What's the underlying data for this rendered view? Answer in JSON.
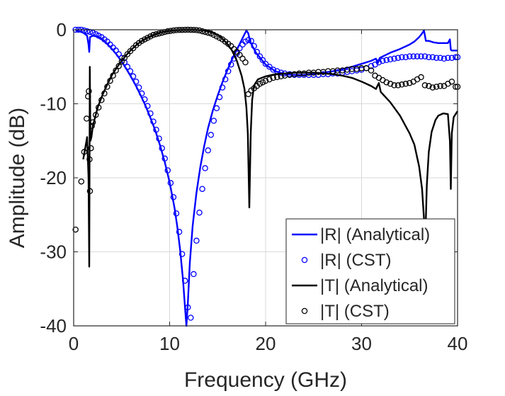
{
  "chart_data": {
    "type": "line",
    "xlabel": "Frequency (GHz)",
    "ylabel": "Amplitude (dB)",
    "xlim": [
      0,
      40
    ],
    "ylim": [
      -40,
      0
    ],
    "xticks": [
      0,
      10,
      20,
      30,
      40
    ],
    "yticks": [
      0,
      -10,
      -20,
      -30,
      -40
    ],
    "grid": true,
    "legend_position": "bottom-right",
    "series": [
      {
        "name": "|R| (Analytical)",
        "style": "line",
        "color": "#0000ff",
        "x": [
          0.2,
          0.6,
          1.0,
          1.4,
          1.55,
          1.62,
          1.7,
          2.0,
          2.5,
          3,
          3.5,
          4,
          4.5,
          5,
          5.5,
          6,
          6.5,
          7,
          7.5,
          8,
          8.5,
          9,
          9.5,
          10,
          10.5,
          10.8,
          11.1,
          11.4,
          11.6,
          11.75,
          11.9,
          12.1,
          12.4,
          12.8,
          13.2,
          13.6,
          14,
          14.5,
          15,
          15.5,
          16,
          16.5,
          17,
          17.5,
          18,
          18.2,
          18.35,
          18.5,
          19,
          20,
          21,
          22,
          23,
          24,
          25,
          26,
          27,
          28,
          29,
          30,
          31,
          31.5,
          31.7,
          31.9,
          33,
          34,
          35,
          35.5,
          36,
          36.3,
          36.5,
          36.7,
          37,
          37.5,
          38,
          38.5,
          39,
          39.2,
          39.3,
          39.4,
          39.6,
          40
        ],
        "y": [
          -0.1,
          -0.2,
          -0.4,
          -0.8,
          -2.0,
          -3.0,
          -1.0,
          -0.8,
          -0.9,
          -1.3,
          -1.9,
          -2.6,
          -3.4,
          -4.3,
          -5.3,
          -6.4,
          -7.6,
          -8.9,
          -10.3,
          -11.9,
          -13.6,
          -15.6,
          -17.9,
          -20.6,
          -24.0,
          -26.6,
          -29.8,
          -33.9,
          -37.5,
          -40.0,
          -37.0,
          -31.5,
          -26.5,
          -22.0,
          -18.5,
          -15.7,
          -13.3,
          -10.9,
          -8.9,
          -7.1,
          -5.5,
          -4.0,
          -2.7,
          -1.4,
          -0.1,
          -0.5,
          -1.4,
          -1.9,
          -3.1,
          -4.7,
          -5.6,
          -6.0,
          -6.1,
          -6.1,
          -6.0,
          -5.8,
          -5.6,
          -5.3,
          -5.0,
          -4.6,
          -4.2,
          -3.9,
          -4.5,
          -3.8,
          -3.1,
          -2.6,
          -2.0,
          -1.6,
          -1.0,
          -0.5,
          -0.1,
          -1.5,
          -1.5,
          -1.7,
          -1.8,
          -1.8,
          -1.8,
          -1.3,
          -2.7,
          -2.8,
          -2.8,
          -2.8
        ]
      },
      {
        "name": "|R| (CST)",
        "style": "markers",
        "color": "#0000ff",
        "x": [
          0.2,
          0.5,
          0.8,
          1.1,
          1.4,
          1.7,
          2.0,
          2.3,
          2.6,
          2.9,
          3.2,
          3.5,
          3.8,
          4.1,
          4.4,
          4.7,
          5.0,
          5.3,
          5.6,
          5.9,
          6.2,
          6.5,
          6.8,
          7.1,
          7.4,
          7.7,
          8.0,
          8.3,
          8.6,
          8.9,
          9.2,
          9.5,
          9.8,
          10.1,
          10.4,
          10.7,
          11.0,
          11.3,
          11.6,
          11.9,
          12.2,
          12.5,
          12.8,
          13.1,
          13.4,
          13.7,
          14.0,
          14.3,
          14.6,
          14.9,
          15.2,
          15.5,
          15.8,
          16.1,
          16.4,
          16.7,
          17.0,
          17.3,
          17.6,
          17.9,
          18.2,
          18.5,
          18.8,
          19.1,
          19.4,
          19.7,
          20.0,
          20.4,
          20.8,
          21.2,
          21.6,
          22.0,
          22.5,
          23.0,
          23.5,
          24.0,
          24.5,
          25.0,
          25.5,
          26.0,
          26.5,
          27.0,
          27.5,
          28.0,
          28.5,
          29.0,
          29.5,
          30.0,
          30.5,
          31.0,
          31.4,
          31.8,
          32.2,
          32.6,
          33.0,
          33.4,
          33.8,
          34.2,
          34.6,
          35.0,
          35.4,
          35.8,
          36.2,
          36.6,
          37.0,
          37.4,
          37.8,
          38.2,
          38.6,
          39.0,
          39.4,
          39.8,
          40.0
        ],
        "y": [
          0.0,
          0.0,
          0.0,
          -0.1,
          -0.2,
          -0.3,
          -0.4,
          -0.6,
          -0.8,
          -1.0,
          -1.3,
          -1.6,
          -2.0,
          -2.4,
          -2.8,
          -3.3,
          -3.8,
          -4.4,
          -5.0,
          -5.6,
          -6.3,
          -7.0,
          -7.8,
          -8.6,
          -9.4,
          -10.3,
          -11.3,
          -12.4,
          -13.5,
          -14.7,
          -16.0,
          -17.4,
          -19.0,
          -20.7,
          -22.6,
          -24.8,
          -27.3,
          -30.3,
          -33.9,
          -37.5,
          -38.9,
          -33.0,
          -28.5,
          -24.7,
          -21.5,
          -18.7,
          -16.3,
          -14.2,
          -12.3,
          -10.6,
          -9.1,
          -7.8,
          -6.7,
          -5.6,
          -4.7,
          -3.9,
          -3.2,
          -2.5,
          -2.0,
          -1.6,
          -1.4,
          -1.5,
          -2.2,
          -3.0,
          -3.6,
          -4.1,
          -4.6,
          -5.0,
          -5.4,
          -5.6,
          -5.8,
          -5.9,
          -6.0,
          -6.1,
          -6.1,
          -6.1,
          -6.1,
          -6.1,
          -6.1,
          -6.0,
          -6.0,
          -5.9,
          -5.9,
          -5.8,
          -5.7,
          -5.6,
          -5.5,
          -5.4,
          -5.2,
          -4.9,
          -4.7,
          -4.4,
          -4.2,
          -4.1,
          -4.0,
          -3.9,
          -3.8,
          -3.7,
          -3.7,
          -3.6,
          -3.6,
          -3.6,
          -3.6,
          -3.6,
          -3.7,
          -3.7,
          -3.8,
          -3.8,
          -3.9,
          -3.8,
          -3.8,
          -3.7,
          -3.7
        ]
      },
      {
        "name": "|T| (Analytical)",
        "style": "line",
        "color": "#000000",
        "x": [
          1.0,
          1.2,
          1.4,
          1.55,
          1.62,
          1.68,
          1.75,
          1.85,
          2.0,
          2.5,
          3,
          3.5,
          4,
          4.5,
          5,
          5.5,
          6,
          6.5,
          7,
          7.5,
          8,
          8.5,
          9,
          9.5,
          10,
          10.5,
          11,
          11.5,
          12,
          12.5,
          13,
          13.5,
          14,
          14.5,
          15,
          15.5,
          16,
          16.5,
          17,
          17.5,
          17.8,
          18.0,
          18.15,
          18.3,
          18.45,
          18.6,
          18.8,
          19.2,
          20,
          21,
          22,
          23,
          24,
          25,
          26,
          27,
          28,
          29,
          30,
          31,
          31.5,
          31.8,
          32,
          33,
          34,
          35,
          35.5,
          36,
          36.3,
          36.5,
          36.6,
          36.7,
          36.8,
          37,
          37.3,
          37.7,
          38,
          38.5,
          39,
          39.2,
          39.3,
          39.4,
          39.6,
          40
        ],
        "y": [
          -17.5,
          -16.0,
          -14.5,
          -20.0,
          -32.0,
          -5.0,
          -15.0,
          -14.5,
          -13.0,
          -10.5,
          -8.8,
          -7.4,
          -6.1,
          -5.1,
          -4.2,
          -3.4,
          -2.7,
          -2.1,
          -1.6,
          -1.2,
          -0.9,
          -0.6,
          -0.4,
          -0.25,
          -0.15,
          -0.08,
          -0.03,
          -0.01,
          0.0,
          -0.01,
          -0.03,
          -0.1,
          -0.2,
          -0.4,
          -0.7,
          -1.2,
          -1.9,
          -2.8,
          -4.2,
          -6.2,
          -8.0,
          -10.5,
          -14.0,
          -24.0,
          -14.0,
          -9.5,
          -7.5,
          -6.7,
          -6.3,
          -6.0,
          -5.9,
          -5.8,
          -5.8,
          -5.8,
          -5.9,
          -6.0,
          -6.2,
          -6.5,
          -7.0,
          -7.6,
          -8.0,
          -7.2,
          -8.4,
          -9.8,
          -11.6,
          -14.0,
          -15.5,
          -18.5,
          -21.5,
          -25.5,
          -28.0,
          -25.5,
          -21.0,
          -16.5,
          -13.8,
          -12.2,
          -11.6,
          -11.3,
          -11.4,
          -15.0,
          -21.5,
          -14.0,
          -11.8,
          -11.0
        ]
      },
      {
        "name": "|T| (CST)",
        "style": "markers",
        "color": "#000000",
        "x": [
          0.2,
          0.8,
          1.1,
          1.35,
          1.5,
          1.58,
          1.65,
          1.7,
          1.8,
          1.9,
          2.0,
          2.3,
          2.6,
          2.9,
          3.2,
          3.5,
          3.8,
          4.1,
          4.4,
          4.7,
          5.0,
          5.3,
          5.6,
          5.9,
          6.2,
          6.5,
          6.8,
          7.1,
          7.4,
          7.7,
          8.0,
          8.3,
          8.6,
          8.9,
          9.2,
          9.5,
          9.8,
          10.1,
          10.4,
          10.7,
          11.0,
          11.3,
          11.6,
          11.9,
          12.2,
          12.5,
          12.8,
          13.1,
          13.4,
          13.7,
          14.0,
          14.3,
          14.6,
          14.9,
          15.2,
          15.5,
          15.8,
          16.1,
          16.4,
          16.7,
          17.0,
          17.3,
          17.6,
          17.9,
          18.2,
          18.5,
          18.8,
          19.1,
          19.4,
          19.7,
          20.0,
          20.4,
          20.8,
          21.2,
          21.6,
          22.0,
          22.5,
          23.0,
          23.5,
          24.0,
          24.5,
          25.0,
          25.5,
          26.0,
          26.5,
          27.0,
          27.5,
          28.0,
          28.5,
          29.0,
          29.5,
          30.0,
          30.5,
          31.0,
          31.4,
          31.8,
          32.2,
          32.6,
          33.0,
          33.4,
          33.8,
          34.2,
          34.6,
          35.0,
          35.4,
          35.8,
          36.2,
          36.6,
          37.0,
          37.4,
          37.8,
          38.2,
          38.6,
          39.0,
          39.4,
          39.8,
          40.0
        ],
        "y": [
          -27.0,
          -20.5,
          -16.5,
          -12.0,
          -9.0,
          -8.3,
          -17.5,
          -21.8,
          -16.0,
          -13.0,
          -12.5,
          -11.5,
          -10.5,
          -9.5,
          -8.6,
          -7.7,
          -6.9,
          -6.2,
          -5.5,
          -4.9,
          -4.3,
          -3.8,
          -3.3,
          -2.9,
          -2.5,
          -2.1,
          -1.8,
          -1.5,
          -1.3,
          -1.1,
          -0.9,
          -0.7,
          -0.6,
          -0.5,
          -0.4,
          -0.3,
          -0.2,
          -0.15,
          -0.1,
          -0.05,
          -0.03,
          -0.02,
          -0.01,
          0.0,
          -0.01,
          -0.02,
          -0.05,
          -0.1,
          -0.2,
          -0.3,
          -0.4,
          -0.5,
          -0.7,
          -0.9,
          -1.1,
          -1.3,
          -1.6,
          -1.9,
          -2.2,
          -2.6,
          -3.0,
          -3.4,
          -3.9,
          -4.4,
          -8.7,
          -8.2,
          -7.9,
          -7.6,
          -7.3,
          -7.1,
          -6.9,
          -6.7,
          -6.5,
          -6.4,
          -6.3,
          -6.2,
          -6.1,
          -6.0,
          -5.9,
          -5.9,
          -5.8,
          -5.8,
          -5.7,
          -5.7,
          -5.6,
          -5.6,
          -5.5,
          -5.5,
          -5.4,
          -5.3,
          -5.3,
          -5.2,
          -5.2,
          -5.5,
          -6.2,
          -6.5,
          -6.8,
          -7.1,
          -7.3,
          -7.5,
          -7.5,
          -7.4,
          -7.3,
          -7.2,
          -7.0,
          -6.7,
          -6.4,
          -7.5,
          -7.6,
          -7.8,
          -7.7,
          -7.6,
          -7.6,
          -7.3,
          -7.0,
          -7.7,
          -7.7
        ]
      }
    ]
  }
}
